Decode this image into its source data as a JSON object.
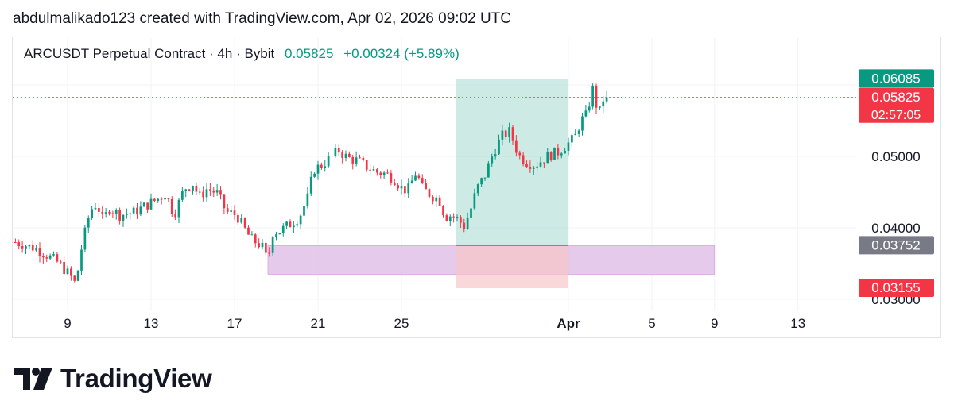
{
  "caption": "abdulmalikado123 created with TradingView.com, Apr 02, 2026 09:02 UTC",
  "legend": {
    "symbol": "ARCUSDT Perpetual Contract · 4h · Bybit",
    "price": "0.05825",
    "change": "+0.00324 (+5.89%)"
  },
  "brand": {
    "name": "TradingView",
    "logo_icon": "tradingview-logo-icon"
  },
  "colors": {
    "up": "#089981",
    "down": "#f23645",
    "grid": "#f0f3fa",
    "long_profit": "#b2dfd5",
    "long_stop": "#f8c6c8",
    "zone": "#e1bee7",
    "marker_gray": "#787b86"
  },
  "chart_data": {
    "type": "candlestick",
    "symbol": "ARCUSDT Perpetual Contract",
    "interval": "4h",
    "exchange": "Bybit",
    "x_ticks": [
      "9",
      "13",
      "17",
      "21",
      "25",
      "Apr",
      "5",
      "9",
      "13"
    ],
    "y_ticks": [
      "0.03000",
      "0.04000",
      "0.05000"
    ],
    "ylim": [
      0.029,
      0.0625
    ],
    "price_markers": [
      {
        "value": "0.06085",
        "role": "high"
      },
      {
        "value": "0.05825",
        "role": "last",
        "countdown": "02:57:05"
      },
      {
        "value": "0.03752",
        "role": "entry"
      },
      {
        "value": "0.03155",
        "role": "stop"
      }
    ],
    "position": {
      "type": "long",
      "entry": 0.03752,
      "target": 0.06085,
      "stop": 0.03155,
      "from_day": 27.6,
      "to_day": 33.0
    },
    "support_zone": {
      "top": 0.03752,
      "bottom": 0.0335,
      "from_day": 18.6,
      "to_day": 40.0
    },
    "candle_path": [
      [
        6.5,
        0.038
      ],
      [
        7.4,
        0.0372
      ],
      [
        8.0,
        0.0362
      ],
      [
        8.6,
        0.035
      ],
      [
        8.9,
        0.034
      ],
      [
        9.2,
        0.033
      ],
      [
        9.4,
        0.032
      ],
      [
        9.6,
        0.0362
      ],
      [
        9.9,
        0.0402
      ],
      [
        10.1,
        0.0425
      ],
      [
        10.4,
        0.0434
      ],
      [
        10.7,
        0.041
      ],
      [
        11.0,
        0.0428
      ],
      [
        11.5,
        0.0418
      ],
      [
        12.2,
        0.0422
      ],
      [
        12.8,
        0.0432
      ],
      [
        13.3,
        0.044
      ],
      [
        13.7,
        0.0448
      ],
      [
        14.1,
        0.0418
      ],
      [
        14.6,
        0.0455
      ],
      [
        15.0,
        0.0462
      ],
      [
        15.3,
        0.0443
      ],
      [
        15.7,
        0.0455
      ],
      [
        16.2,
        0.0448
      ],
      [
        16.6,
        0.0422
      ],
      [
        17.1,
        0.0418
      ],
      [
        17.4,
        0.0402
      ],
      [
        17.8,
        0.0384
      ],
      [
        18.3,
        0.0375
      ],
      [
        18.6,
        0.0352
      ],
      [
        18.8,
        0.0394
      ],
      [
        19.2,
        0.0396
      ],
      [
        19.7,
        0.0406
      ],
      [
        20.1,
        0.0415
      ],
      [
        20.5,
        0.0442
      ],
      [
        20.8,
        0.0482
      ],
      [
        21.1,
        0.0486
      ],
      [
        21.6,
        0.0498
      ],
      [
        22.0,
        0.0508
      ],
      [
        22.4,
        0.0498
      ],
      [
        22.9,
        0.0494
      ],
      [
        23.3,
        0.0486
      ],
      [
        23.8,
        0.0478
      ],
      [
        24.2,
        0.0476
      ],
      [
        24.6,
        0.047
      ],
      [
        25.0,
        0.0456
      ],
      [
        25.3,
        0.0452
      ],
      [
        25.7,
        0.0478
      ],
      [
        26.0,
        0.0455
      ],
      [
        26.4,
        0.0446
      ],
      [
        26.8,
        0.044
      ],
      [
        27.1,
        0.0415
      ],
      [
        27.4,
        0.0418
      ],
      [
        27.7,
        0.0412
      ],
      [
        28.0,
        0.0402
      ],
      [
        28.3,
        0.0424
      ],
      [
        28.6,
        0.0454
      ],
      [
        29.0,
        0.0474
      ],
      [
        29.4,
        0.0505
      ],
      [
        29.8,
        0.0528
      ],
      [
        30.2,
        0.0535
      ],
      [
        30.6,
        0.0502
      ],
      [
        31.0,
        0.0492
      ],
      [
        31.4,
        0.0488
      ],
      [
        31.8,
        0.0496
      ],
      [
        32.1,
        0.0502
      ],
      [
        32.5,
        0.0506
      ],
      [
        32.9,
        0.0516
      ],
      [
        33.3,
        0.0526
      ],
      [
        33.6,
        0.055
      ],
      [
        33.95,
        0.056
      ],
      [
        34.1,
        0.0604
      ],
      [
        34.25,
        0.0582
      ],
      [
        34.45,
        0.0558
      ],
      [
        34.6,
        0.0572
      ],
      [
        34.75,
        0.059
      ],
      [
        34.9,
        0.0583
      ]
    ]
  }
}
